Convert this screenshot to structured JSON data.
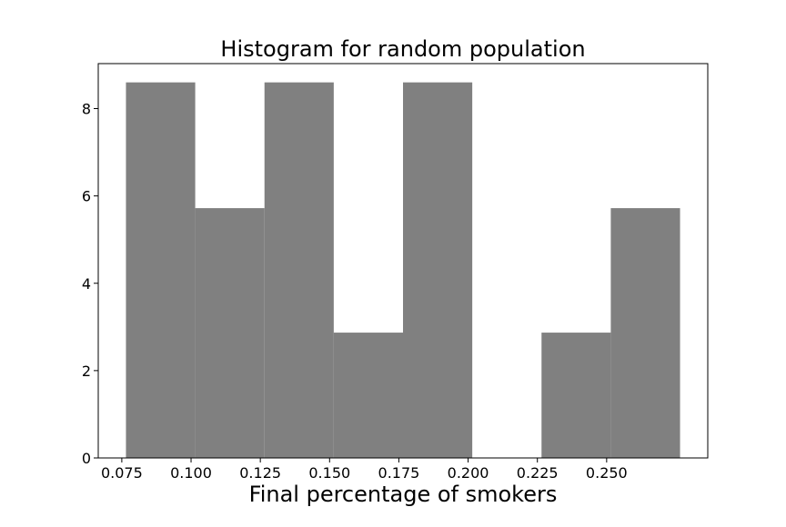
{
  "chart_data": {
    "type": "bar",
    "title": "Histogram for random population",
    "xlabel": "Final percentage of smokers",
    "ylabel": "",
    "bin_edges": [
      0.0765,
      0.1015,
      0.1265,
      0.1515,
      0.1765,
      0.2015,
      0.2265,
      0.2515,
      0.2765
    ],
    "values": [
      8.6,
      5.72,
      8.6,
      2.87,
      8.6,
      0,
      2.87,
      5.72
    ],
    "xlim": [
      0.0665,
      0.2865
    ],
    "ylim": [
      0,
      9.03
    ],
    "xticks": [
      0.075,
      0.1,
      0.125,
      0.15,
      0.175,
      0.2,
      0.225,
      0.25
    ],
    "xtick_labels": [
      "0.075",
      "0.100",
      "0.125",
      "0.150",
      "0.175",
      "0.200",
      "0.225",
      "0.250"
    ],
    "yticks": [
      0,
      2,
      4,
      6,
      8
    ],
    "ytick_labels": [
      "0",
      "2",
      "4",
      "6",
      "8"
    ],
    "bar_color": "#808080",
    "grid": false,
    "legend": "none"
  }
}
